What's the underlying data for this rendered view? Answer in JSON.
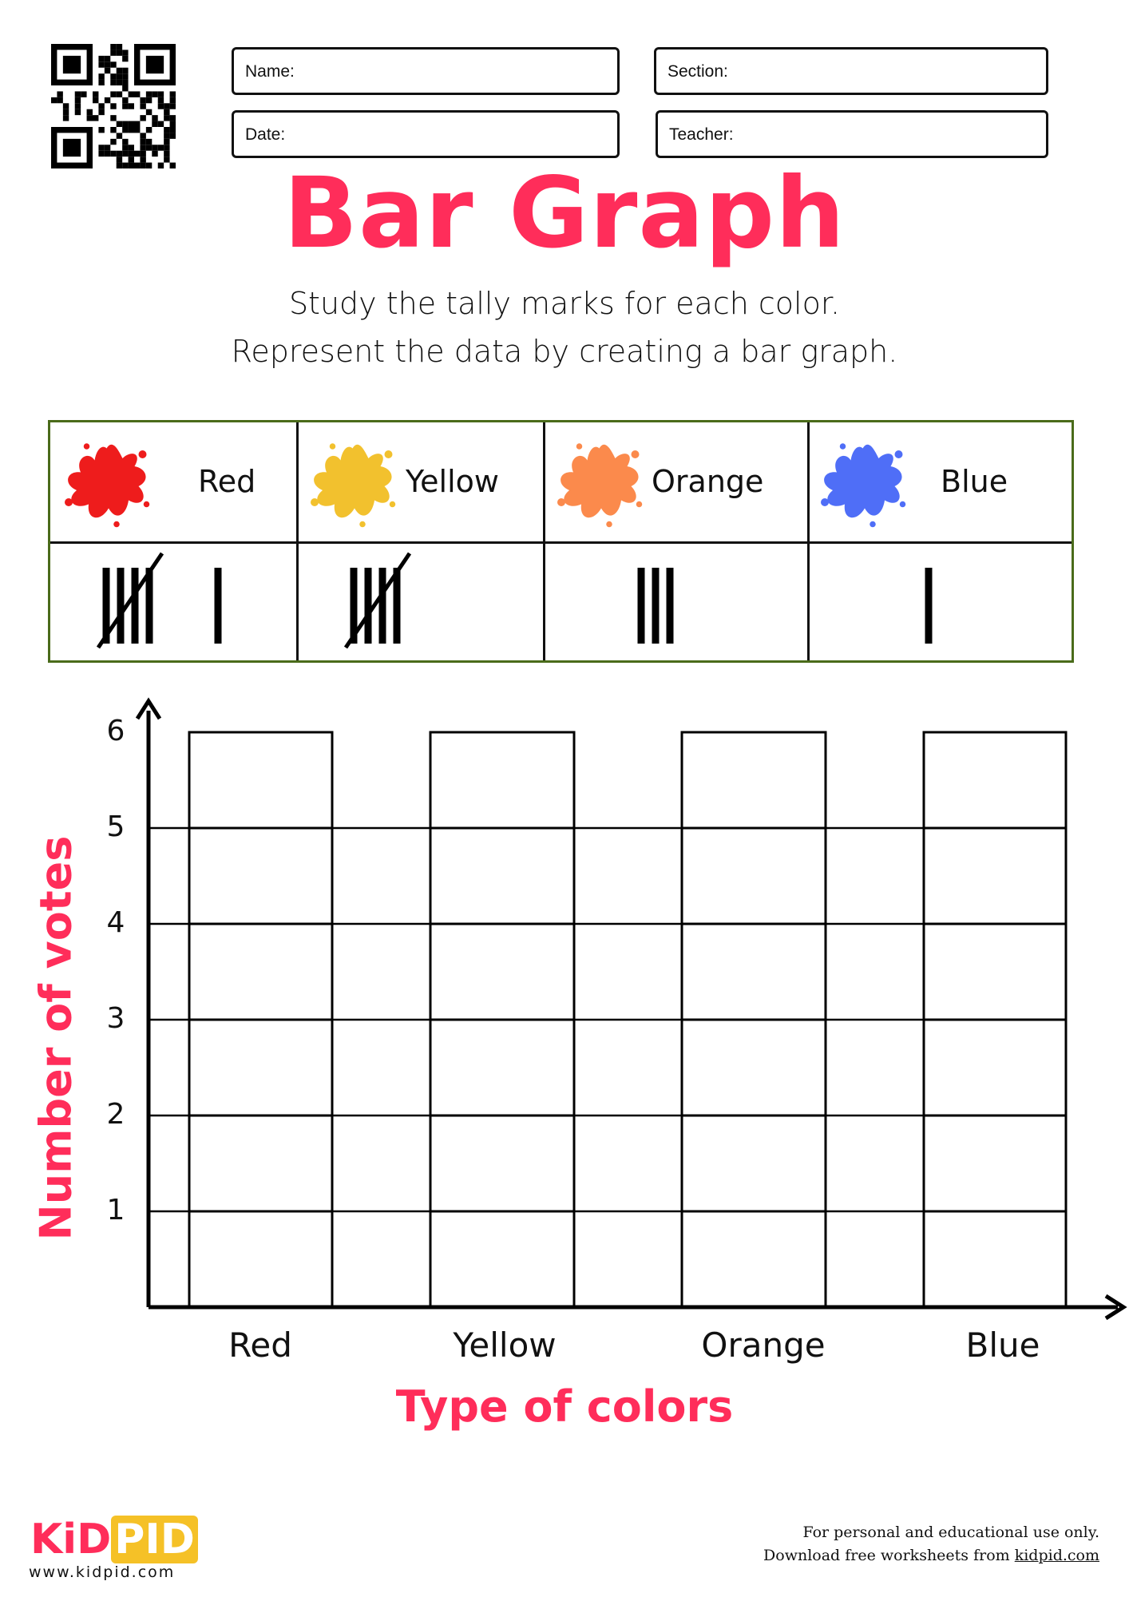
{
  "header": {
    "qr_code": "qr-code",
    "fields": {
      "name": "Name:",
      "section": "Section:",
      "date": "Date:",
      "teacher": "Teacher:"
    }
  },
  "title": "Bar Graph",
  "instructions": [
    "Study the tally marks for each color.",
    "Represent the data by creating a bar graph."
  ],
  "tally_table": {
    "border_color": "#4a6b1a",
    "columns": [
      {
        "label": "Red",
        "splat_color": "#ee1c1c",
        "tally": 6
      },
      {
        "label": "Yellow",
        "splat_color": "#f2c12e",
        "tally": 5
      },
      {
        "label": "Orange",
        "splat_color": "#fb8a4c",
        "tally": 3
      },
      {
        "label": "Blue",
        "splat_color": "#4f6ef7",
        "tally": 1
      }
    ]
  },
  "chart_data": {
    "type": "bar",
    "categories": [
      "Red",
      "Yellow",
      "Orange",
      "Blue"
    ],
    "xlabel": "Type of colors",
    "ylabel": "Number of votes",
    "yticks": [
      "1",
      "2",
      "3",
      "4",
      "5",
      "6"
    ],
    "ylim": [
      0,
      6
    ],
    "grid": true,
    "bars_filled": false,
    "accent_color": "#ff2d5a"
  },
  "footer": {
    "logo": {
      "part1": "KiD",
      "part2": "PID",
      "colors": [
        "#ff2d5a",
        "#f5c127"
      ]
    },
    "website": "www.kidpid.com",
    "note_line1": "For personal and educational use only.",
    "note_line2_prefix": "Download free worksheets from ",
    "note_link": "kidpid.com"
  }
}
